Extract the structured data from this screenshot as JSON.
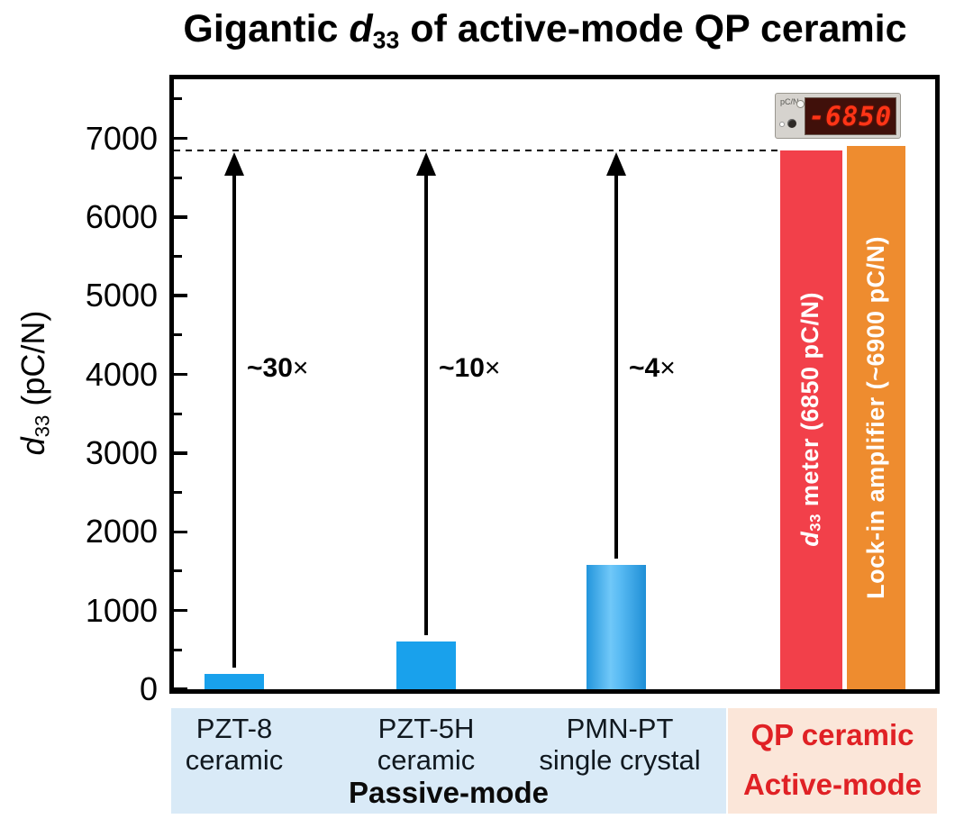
{
  "title": {
    "full": "Gigantic d33 of active-mode QP ceramic",
    "prefix": "Gigantic ",
    "d": "d",
    "sub": "33",
    "suffix": " of active-mode QP ceramic"
  },
  "y_axis": {
    "label_full": "d33 (pC/N)",
    "label_d": "d",
    "label_sub": "33",
    "label_rest": " (pC/N)",
    "ticks": [
      0,
      1000,
      2000,
      3000,
      4000,
      5000,
      6000,
      7000
    ],
    "minor_step": 500,
    "max": 7750
  },
  "chart_data": {
    "type": "bar",
    "title": "Gigantic d33 of active-mode QP ceramic",
    "xlabel": "",
    "ylabel": "d33 (pC/N)",
    "ylim": [
      0,
      7750
    ],
    "yticks": [
      0,
      1000,
      2000,
      3000,
      4000,
      5000,
      6000,
      7000
    ],
    "grid": false,
    "reference_line": {
      "value": 6850,
      "style": "dashed",
      "color": "#000000"
    },
    "bars": [
      {
        "category": "PZT-8 ceramic",
        "value": 200,
        "color": "#19a1ec",
        "group": "Passive-mode",
        "annotation": "~30×"
      },
      {
        "category": "PZT-5H ceramic",
        "value": 610,
        "color": "#19a1ec",
        "group": "Passive-mode",
        "annotation": "~10×"
      },
      {
        "category": "PMN-PT single crystal",
        "value": 1580,
        "color": "#2d9fe0",
        "group": "Passive-mode",
        "annotation": "~4×"
      },
      {
        "category": "QP ceramic — d33 meter",
        "value": 6850,
        "color": "#f2404a",
        "group": "Active-mode",
        "bar_label": "d33 meter (6850 pC/N)"
      },
      {
        "category": "QP ceramic — Lock-in amplifier",
        "value": 6900,
        "color": "#ee8c2f",
        "group": "Active-mode",
        "bar_label": "Lock-in amplifier (~6900 pC/N)"
      }
    ]
  },
  "annotations": {
    "multipliers": [
      {
        "factor": "~30",
        "sign": "×"
      },
      {
        "factor": "~10",
        "sign": "×"
      },
      {
        "factor": "~4",
        "sign": "×"
      }
    ]
  },
  "bar_texts": {
    "red_d": "d",
    "red_sub": "33",
    "red_rest": " meter (6850 pC/N)",
    "orange": "Lock-in amplifier (~6900 pC/N)"
  },
  "meter": {
    "reading": "-6850",
    "unit": "pC/N"
  },
  "categories": [
    {
      "line1": "PZT-8",
      "line2": "ceramic"
    },
    {
      "line1": "PZT-5H",
      "line2": "ceramic"
    },
    {
      "line1": "PMN-PT",
      "line2": "single crystal"
    }
  ],
  "group_labels": {
    "passive": "Passive-mode",
    "qp": "QP ceramic",
    "active": "Active-mode"
  },
  "colors": {
    "bar_blue": "#19a1ec",
    "bar_blue_gradient_light": "#6ec6f8",
    "bar_red": "#f2404a",
    "bar_orange": "#ee8c2f",
    "band_passive": "#d9eaf7",
    "band_active": "#fbe6d9",
    "active_text": "#e02125",
    "meter_digits": "#ff3517"
  }
}
